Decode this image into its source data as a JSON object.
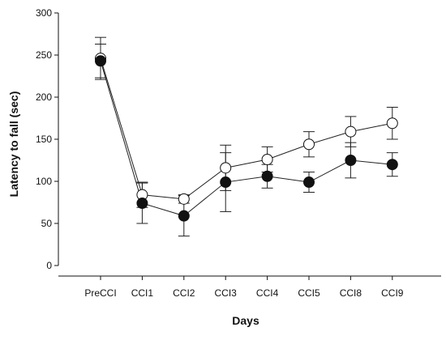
{
  "chart_data": {
    "type": "line",
    "xlabel": "Days",
    "ylabel": "Latency to fall (sec)",
    "categories": [
      "PreCCI",
      "CCI1",
      "CCI2",
      "CCI3",
      "CCI4",
      "CCI5",
      "CCI8",
      "CCI9"
    ],
    "ylim": [
      0,
      300
    ],
    "yticks": [
      "0",
      "50",
      "100",
      "150",
      "200",
      "250",
      "300"
    ],
    "grid": false,
    "series": [
      {
        "marker": "open-circle",
        "values": [
          246,
          84,
          79,
          116,
          126,
          144,
          159,
          169
        ],
        "error": [
          25,
          15,
          5,
          27,
          15,
          15,
          18,
          19
        ]
      },
      {
        "marker": "filled-circle",
        "values": [
          243,
          74,
          59,
          99,
          106,
          99,
          125,
          120
        ],
        "error": [
          20,
          24,
          24,
          35,
          14,
          12,
          21,
          14
        ]
      }
    ]
  }
}
